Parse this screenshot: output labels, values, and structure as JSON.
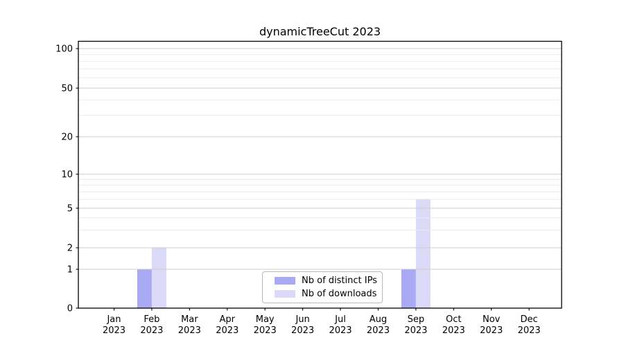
{
  "chart_data": {
    "type": "bar",
    "title": "dynamicTreeCut 2023",
    "categories": [
      "Jan",
      "Feb",
      "Mar",
      "Apr",
      "May",
      "Jun",
      "Jul",
      "Aug",
      "Sep",
      "Oct",
      "Nov",
      "Dec"
    ],
    "category_year": "2023",
    "series": [
      {
        "name": "Nb of distinct IPs",
        "color": "#a9a9f4",
        "values": [
          0,
          1,
          0,
          0,
          0,
          0,
          0,
          0,
          1,
          0,
          0,
          0
        ]
      },
      {
        "name": "Nb of downloads",
        "color": "#dadaf8",
        "values": [
          0,
          2,
          0,
          0,
          0,
          0,
          0,
          0,
          6,
          0,
          0,
          0
        ]
      }
    ],
    "xlabel": "",
    "ylabel": "",
    "y_ticks": [
      0,
      1,
      2,
      5,
      10,
      20,
      50,
      100
    ],
    "y_scale": "symlog",
    "ylim": [
      0,
      115
    ],
    "grid": "horizontal major and log-minor lines, drawn above bars",
    "legend_position": "inside bottom-center"
  },
  "colors": {
    "grid_major": "#cccccc",
    "grid_minor": "#ebebeb",
    "axis": "#000000",
    "text": "#000000",
    "legend_border": "#b9b9b9"
  }
}
